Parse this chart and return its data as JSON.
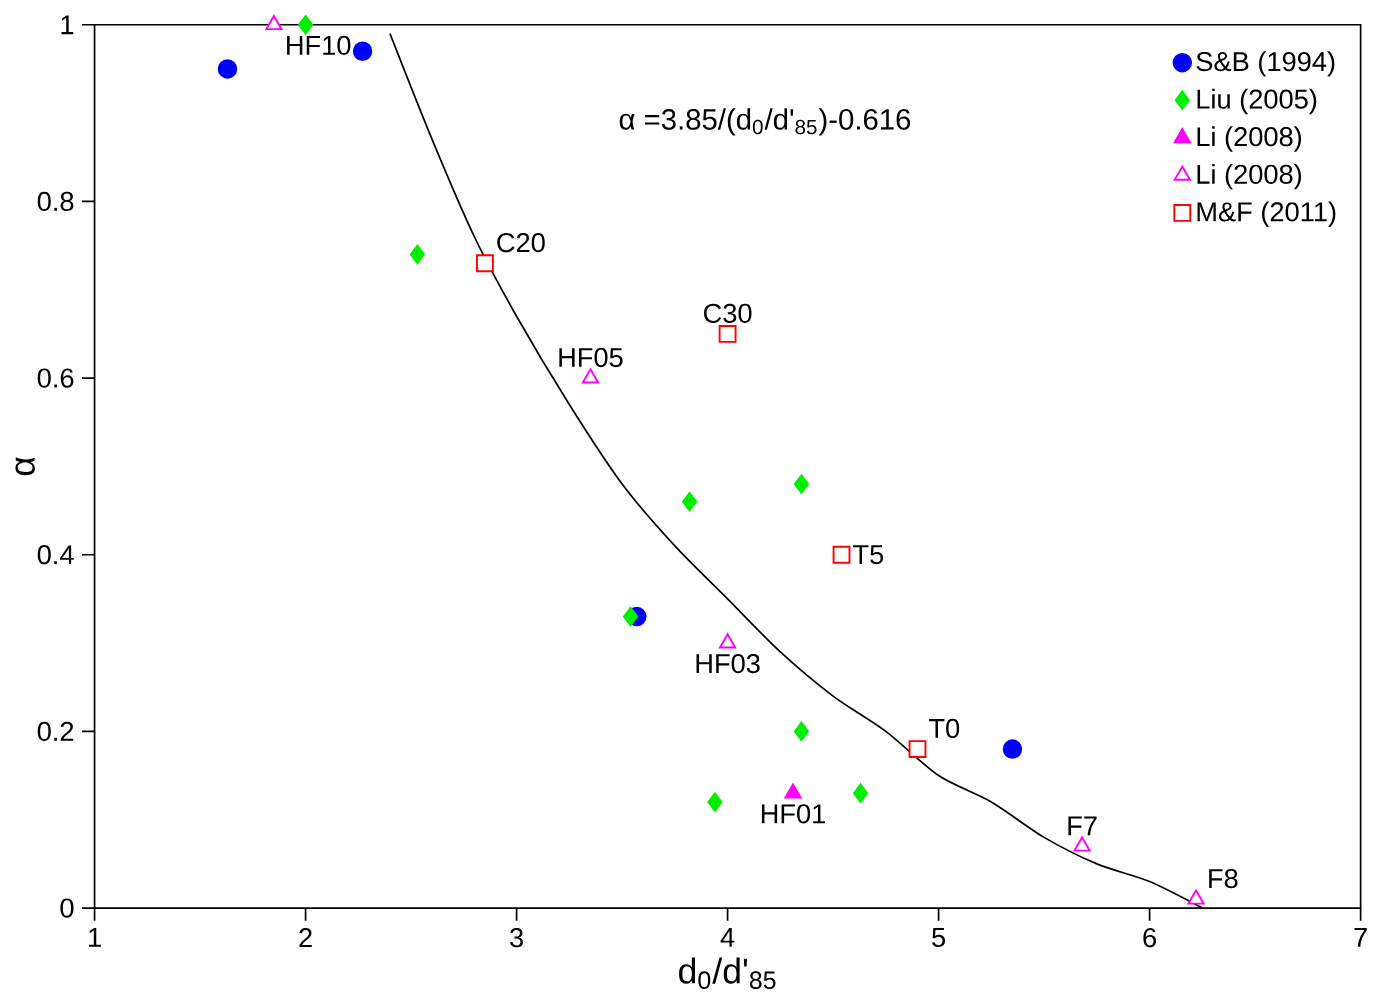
{
  "chart_data": {
    "type": "scatter",
    "xlabel": "d$_{0}$/d'$_{85}$",
    "ylabel": "α",
    "xlim": [
      1,
      7
    ],
    "ylim": [
      0,
      1
    ],
    "xticks": [
      1,
      2,
      3,
      4,
      5,
      6,
      7
    ],
    "yticks": [
      0,
      0.2,
      0.4,
      0.6,
      0.8,
      1
    ],
    "grid": false,
    "legend": "top right",
    "series": [
      {
        "name": "S&B (1994)",
        "color": "#0000ff",
        "marker": "circle",
        "x": [
          1.63,
          2.27,
          3.57,
          5.35
        ],
        "values": [
          0.95,
          0.97,
          0.33,
          0.18
        ]
      },
      {
        "name": "Liu (2005)",
        "color": "#00ee00",
        "marker": "diamond",
        "x": [
          2.0,
          2.53,
          3.82,
          4.35,
          3.54,
          4.35,
          3.94,
          4.63
        ],
        "values": [
          1.0,
          0.74,
          0.46,
          0.48,
          0.33,
          0.2,
          0.12,
          0.13
        ]
      },
      {
        "name": "Li (2008)",
        "color": "#ff00ff",
        "marker": "triangle",
        "x": [
          4.31
        ],
        "values": [
          0.13
        ]
      },
      {
        "name": "Li (2008)",
        "color": "#ff00ff",
        "marker": "triangle",
        "x": [
          1.85,
          3.35,
          4.0,
          5.68,
          6.22
        ],
        "values": [
          1.0,
          0.6,
          0.3,
          0.07,
          0.01
        ]
      },
      {
        "name": "M&F (2011)",
        "color": "#ff0000",
        "marker": "square",
        "x": [
          2.85,
          4.0,
          4.54,
          4.9
        ],
        "values": [
          0.73,
          0.65,
          0.4,
          0.18
        ]
      },
      {
        "type": "line",
        "color": "#000000",
        "marker": "none",
        "line_style": "solid",
        "x": [
          2.4,
          2.6,
          2.8,
          3.0,
          3.25,
          3.5,
          3.75,
          4.0,
          4.25,
          4.5,
          4.75,
          5.0,
          5.25,
          5.5,
          5.75,
          6.0,
          6.25
        ],
        "values": [
          0.99,
          0.87,
          0.76,
          0.67,
          0.57,
          0.48,
          0.41,
          0.35,
          0.29,
          0.24,
          0.2,
          0.15,
          0.12,
          0.08,
          0.05,
          0.03,
          0.0
        ]
      }
    ],
    "annotations": [
      "α =3.85/(d$_{0}$/d'$_{85}$)-0.616",
      {
        "text": "HF10",
        "x": 1.85,
        "y": 1.0
      },
      {
        "text": "C20",
        "x": 2.85,
        "y": 0.73
      },
      {
        "text": "HF05",
        "x": 3.35,
        "y": 0.6
      },
      {
        "text": "C30",
        "x": 4.0,
        "y": 0.65
      },
      {
        "text": "T5",
        "x": 4.54,
        "y": 0.4
      },
      {
        "text": "HF03",
        "x": 4.0,
        "y": 0.3
      },
      {
        "text": "T0",
        "x": 4.9,
        "y": 0.18
      },
      {
        "text": "HF01",
        "x": 4.31,
        "y": 0.13
      },
      {
        "text": "F7",
        "x": 5.68,
        "y": 0.07
      },
      {
        "text": "F8",
        "x": 6.22,
        "y": 0.01
      }
    ]
  }
}
